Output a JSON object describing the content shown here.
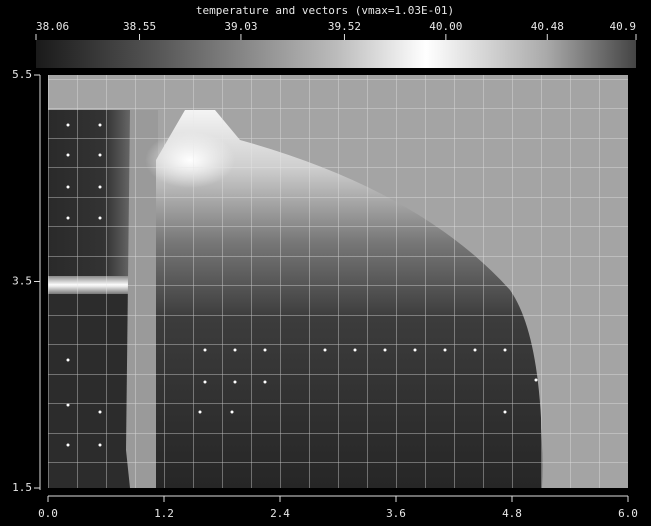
{
  "chart_data": {
    "type": "heatmap",
    "title": "temperature and vectors  (vmax=1.03E-01)",
    "colorbar_lim": [
      38.06,
      40.9
    ],
    "colorbar_ticks": [
      38.06,
      38.55,
      39.03,
      39.52,
      {
        "value": 40,
        "label": "40.00"
      },
      40.48,
      40.9
    ],
    "xlim": [
      0,
      6
    ],
    "xticks": [
      {
        "value": 0,
        "label": "0.0"
      },
      1.2,
      2.4,
      3.6,
      4.8,
      {
        "value": 6,
        "label": "6.0"
      }
    ],
    "ylim": [
      1.5,
      5.5
    ],
    "yticks": [
      5.5,
      3.5,
      1.5
    ]
  }
}
